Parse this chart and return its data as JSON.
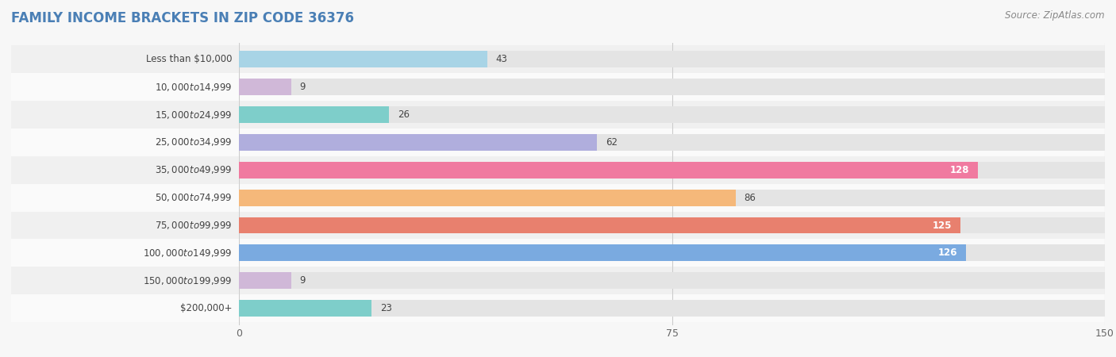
{
  "title": "FAMILY INCOME BRACKETS IN ZIP CODE 36376",
  "source": "Source: ZipAtlas.com",
  "categories": [
    "Less than $10,000",
    "$10,000 to $14,999",
    "$15,000 to $24,999",
    "$25,000 to $34,999",
    "$35,000 to $49,999",
    "$50,000 to $74,999",
    "$75,000 to $99,999",
    "$100,000 to $149,999",
    "$150,000 to $199,999",
    "$200,000+"
  ],
  "values": [
    43,
    9,
    26,
    62,
    128,
    86,
    125,
    126,
    9,
    23
  ],
  "bar_colors": [
    "#a8d4e6",
    "#d0b8d8",
    "#7ececa",
    "#b0aedd",
    "#f07aa0",
    "#f5b87a",
    "#e8806e",
    "#7aaae0",
    "#d0b8d8",
    "#7ececa"
  ],
  "xlim": [
    0,
    150
  ],
  "xticks": [
    0,
    75,
    150
  ],
  "background_color": "#f7f7f7",
  "bar_background_color": "#e4e4e4",
  "row_bg_colors": [
    "#f0f0f0",
    "#fafafa"
  ],
  "title_fontsize": 12,
  "label_fontsize": 8.5,
  "value_fontsize": 8.5,
  "source_fontsize": 8.5,
  "bar_height": 0.6,
  "value_threshold": 110
}
